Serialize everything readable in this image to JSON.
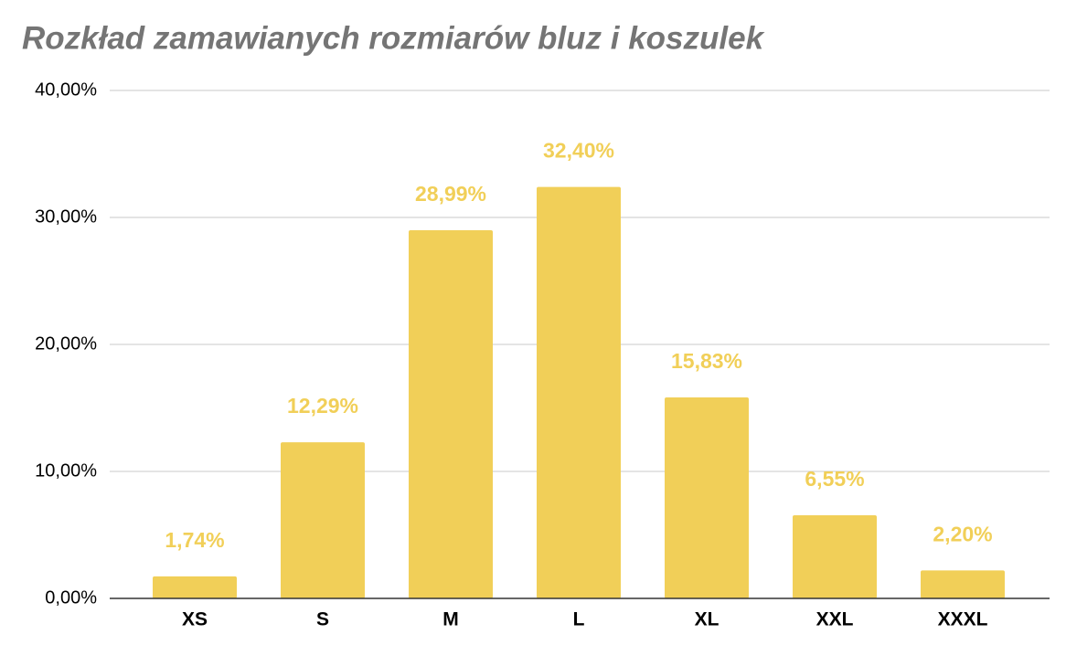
{
  "chart_data": {
    "type": "bar",
    "title": "Rozkład zamawianych rozmiarów bluz i koszulek",
    "categories": [
      "XS",
      "S",
      "M",
      "L",
      "XL",
      "XXL",
      "XXXL"
    ],
    "values": [
      1.74,
      12.29,
      28.99,
      32.4,
      15.83,
      6.55,
      2.2
    ],
    "value_labels": [
      "1,74%",
      "12,29%",
      "28,99%",
      "32,40%",
      "15,83%",
      "6,55%",
      "2,20%"
    ],
    "color": "#f1cf58",
    "ylim": [
      0,
      40
    ],
    "yticks": [
      {
        "value": 0,
        "label": "0,00%"
      },
      {
        "value": 10,
        "label": "10,00%"
      },
      {
        "value": 20,
        "label": "20,00%"
      },
      {
        "value": 30,
        "label": "30,00%"
      },
      {
        "value": 40,
        "label": "40,00%"
      }
    ],
    "grid": true
  }
}
